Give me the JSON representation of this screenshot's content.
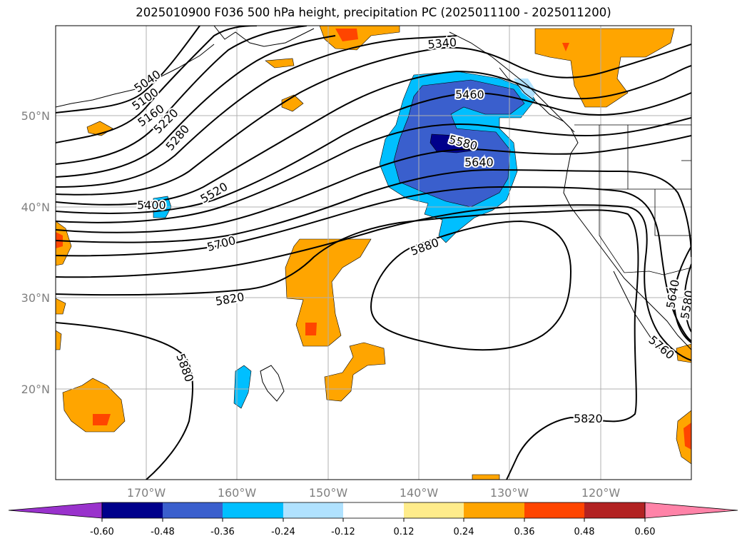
{
  "title": "2025010900 F036 500 hPa height, precipitation PC (2025011100 - 2025011200)",
  "map": {
    "lat_labels": [
      "50°N",
      "40°N",
      "30°N",
      "20°N"
    ],
    "lon_labels": [
      "170°W",
      "160°W",
      "150°W",
      "140°W",
      "130°W",
      "120°W"
    ],
    "grid_color": "#b0b0b0",
    "tick_label_color": "#808080"
  },
  "contours": {
    "color": "#000000",
    "labels": [
      "5040",
      "5100",
      "5160",
      "5220",
      "5280",
      "5340",
      "5400",
      "5460",
      "5520",
      "5580",
      "5640",
      "5700",
      "5760",
      "5820",
      "5880",
      "5640",
      "5580",
      "5820",
      "5880"
    ]
  },
  "colorbar": {
    "ticks": [
      "-0.60",
      "-0.48",
      "-0.36",
      "-0.24",
      "-0.12",
      "0.12",
      "0.24",
      "0.36",
      "0.48",
      "0.60"
    ],
    "colors": [
      "#9932cc",
      "#00008b",
      "#3a5fcd",
      "#00bfff",
      "#b0e2ff",
      "#ffffff",
      "#ffec8b",
      "#ffa500",
      "#ff4500",
      "#b22222",
      "#ff83a8"
    ]
  }
}
